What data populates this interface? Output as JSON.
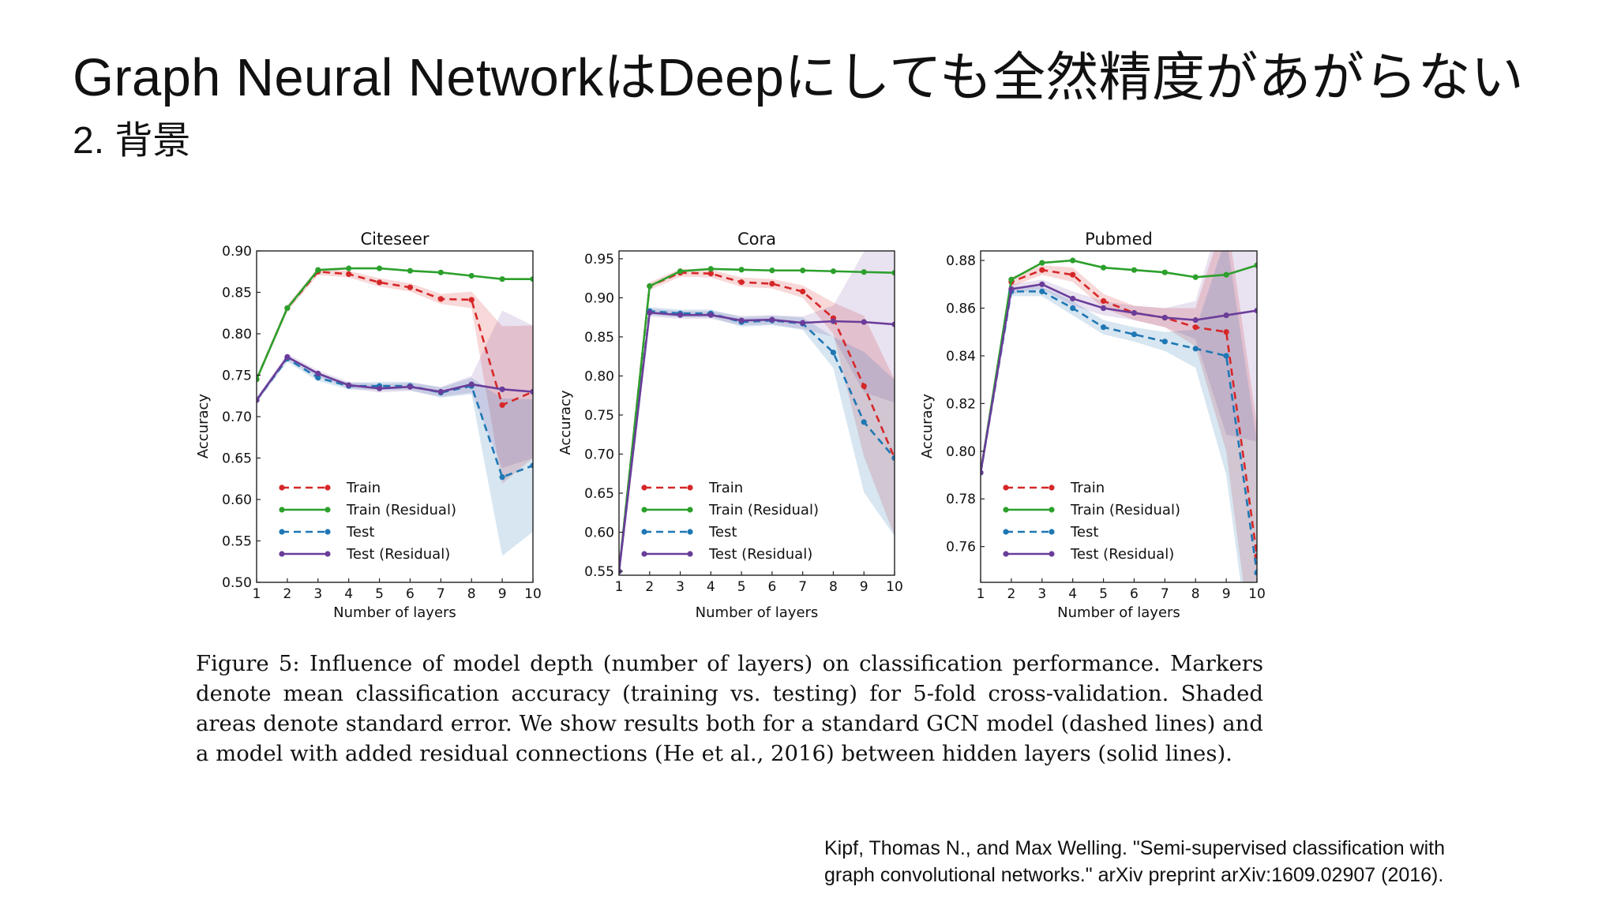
{
  "slide": {
    "title": "Graph Neural NetworkはDeepにしても全然精度があがらない",
    "subtitle": "2. 背景"
  },
  "caption": "Figure 5: Influence of model depth (number of layers) on classification performance. Markers denote mean classification accuracy (training vs. testing) for 5-fold cross-validation. Shaded areas denote standard error. We show results both for a standard GCN model (dashed lines) and a model with added residual connections (He et al., 2016) between hidden layers (solid lines).",
  "citation": {
    "line1": "Kipf, Thomas N., and Max Welling. \"Semi-supervised classification with",
    "line2": "graph convolutional networks.\" arXiv preprint arXiv:1609.02907 (2016)."
  },
  "colors": {
    "train": "#d62728",
    "train_residual": "#2ca02c",
    "test": "#1f77b4",
    "test_residual": "#6a3d9a"
  },
  "chart_data": [
    {
      "type": "line",
      "title": "Citeseer",
      "xlabel": "Number of layers",
      "ylabel": "Accuracy",
      "x": [
        1,
        2,
        3,
        4,
        5,
        6,
        7,
        8,
        9,
        10
      ],
      "xlim": [
        1,
        10
      ],
      "ylim": [
        0.5,
        0.9
      ],
      "yticks": [
        "0.50",
        "0.55",
        "0.60",
        "0.65",
        "0.70",
        "0.75",
        "0.80",
        "0.85",
        "0.90"
      ],
      "legend_position": "lower-left",
      "series": [
        {
          "name": "Train",
          "style": "dashed",
          "values": [
            0.745,
            0.831,
            0.875,
            0.872,
            0.862,
            0.856,
            0.842,
            0.841,
            0.714,
            0.73
          ]
        },
        {
          "name": "Train (Residual)",
          "style": "solid",
          "values": [
            0.745,
            0.831,
            0.877,
            0.879,
            0.879,
            0.876,
            0.874,
            0.87,
            0.866,
            0.866
          ]
        },
        {
          "name": "Test",
          "style": "dashed",
          "values": [
            0.72,
            0.77,
            0.747,
            0.737,
            0.737,
            0.737,
            0.729,
            0.737,
            0.627,
            0.641
          ]
        },
        {
          "name": "Test (Residual)",
          "style": "solid",
          "values": [
            0.72,
            0.772,
            0.752,
            0.738,
            0.734,
            0.736,
            0.73,
            0.739,
            0.733,
            0.73
          ]
        }
      ]
    },
    {
      "type": "line",
      "title": "Cora",
      "xlabel": "Number of layers",
      "ylabel": "Accuracy",
      "x": [
        1,
        2,
        3,
        4,
        5,
        6,
        7,
        8,
        9,
        10
      ],
      "xlim": [
        1,
        10
      ],
      "ylim": [
        0.545,
        0.96
      ],
      "yticks": [
        "0.55",
        "0.60",
        "0.65",
        "0.70",
        "0.75",
        "0.80",
        "0.85",
        "0.90",
        "0.95"
      ],
      "legend_position": "lower-left",
      "series": [
        {
          "name": "Train",
          "style": "dashed",
          "values": [
            0.55,
            0.915,
            0.932,
            0.931,
            0.92,
            0.918,
            0.908,
            0.874,
            0.787,
            0.695
          ]
        },
        {
          "name": "Train (Residual)",
          "style": "solid",
          "values": [
            0.55,
            0.915,
            0.934,
            0.937,
            0.936,
            0.935,
            0.935,
            0.934,
            0.933,
            0.932
          ]
        },
        {
          "name": "Test",
          "style": "dashed",
          "values": [
            0.55,
            0.883,
            0.88,
            0.88,
            0.869,
            0.871,
            0.867,
            0.83,
            0.741,
            0.695
          ]
        },
        {
          "name": "Test (Residual)",
          "style": "solid",
          "values": [
            0.55,
            0.881,
            0.878,
            0.878,
            0.871,
            0.872,
            0.868,
            0.87,
            0.869,
            0.866
          ]
        }
      ]
    },
    {
      "type": "line",
      "title": "Pubmed",
      "xlabel": "Number of layers",
      "ylabel": "Accuracy",
      "x": [
        1,
        2,
        3,
        4,
        5,
        6,
        7,
        8,
        9,
        10
      ],
      "xlim": [
        1,
        10
      ],
      "ylim": [
        0.745,
        0.884
      ],
      "yticks": [
        "0.76",
        "0.78",
        "0.80",
        "0.82",
        "0.84",
        "0.86",
        "0.88"
      ],
      "legend_position": "lower-left",
      "series": [
        {
          "name": "Train",
          "style": "dashed",
          "values": [
            0.791,
            0.871,
            0.876,
            0.874,
            0.863,
            0.858,
            0.856,
            0.852,
            0.85,
            0.756
          ]
        },
        {
          "name": "Train (Residual)",
          "style": "solid",
          "values": [
            0.791,
            0.872,
            0.879,
            0.88,
            0.877,
            0.876,
            0.875,
            0.873,
            0.874,
            0.878
          ]
        },
        {
          "name": "Test",
          "style": "dashed",
          "values": [
            0.791,
            0.867,
            0.867,
            0.86,
            0.852,
            0.849,
            0.846,
            0.843,
            0.84,
            0.749
          ]
        },
        {
          "name": "Test (Residual)",
          "style": "solid",
          "values": [
            0.791,
            0.868,
            0.87,
            0.864,
            0.86,
            0.858,
            0.856,
            0.855,
            0.857,
            0.859
          ]
        }
      ]
    }
  ]
}
